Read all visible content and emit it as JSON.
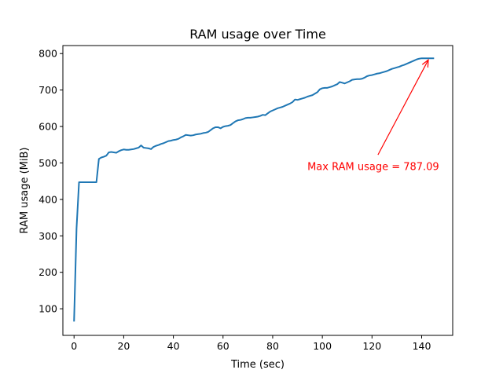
{
  "chart_data": {
    "type": "line",
    "title": "RAM usage over Time",
    "xlabel": "Time (sec)",
    "ylabel": "RAM usage (MiB)",
    "xlim": [
      -4.5,
      152.5
    ],
    "ylim": [
      27,
      822
    ],
    "xticks": [
      0,
      20,
      40,
      60,
      80,
      100,
      120,
      140
    ],
    "yticks": [
      100,
      200,
      300,
      400,
      500,
      600,
      700,
      800
    ],
    "grid": false,
    "legend": "none",
    "series": [
      {
        "color": "#1f77b4",
        "x": [
          0,
          1,
          2,
          3,
          4,
          5,
          6,
          7,
          8,
          9,
          10,
          11,
          12,
          13,
          14,
          15,
          16,
          17,
          18,
          19,
          20,
          21,
          22,
          23,
          24,
          25,
          26,
          27,
          28,
          29,
          30,
          31,
          32,
          33,
          34,
          35,
          36,
          37,
          38,
          39,
          40,
          41,
          42,
          43,
          44,
          45,
          46,
          47,
          48,
          49,
          50,
          51,
          52,
          53,
          54,
          55,
          56,
          57,
          58,
          59,
          60,
          61,
          62,
          63,
          64,
          65,
          66,
          67,
          68,
          69,
          70,
          71,
          72,
          73,
          74,
          75,
          76,
          77,
          78,
          79,
          80,
          81,
          82,
          83,
          84,
          85,
          86,
          87,
          88,
          89,
          90,
          91,
          92,
          93,
          94,
          95,
          96,
          97,
          98,
          99,
          100,
          101,
          102,
          103,
          104,
          105,
          106,
          107,
          108,
          109,
          110,
          111,
          112,
          113,
          114,
          115,
          116,
          117,
          118,
          119,
          120,
          121,
          122,
          123,
          124,
          125,
          126,
          127,
          128,
          129,
          130,
          131,
          132,
          133,
          134,
          135,
          136,
          137,
          138,
          139,
          140,
          141,
          142,
          143,
          144,
          145
        ],
        "y": [
          65,
          320,
          447,
          447,
          447,
          447,
          447,
          447,
          447,
          447,
          511,
          515,
          517,
          520,
          529,
          530,
          529,
          528,
          532,
          535,
          537,
          536,
          536,
          537,
          538,
          540,
          542,
          548,
          542,
          541,
          540,
          538,
          544,
          547,
          549,
          552,
          554,
          557,
          560,
          561,
          563,
          564,
          566,
          570,
          573,
          577,
          576,
          575,
          576,
          578,
          579,
          580,
          582,
          583,
          585,
          590,
          595,
          598,
          598,
          595,
          599,
          601,
          602,
          604,
          609,
          614,
          617,
          618,
          620,
          623,
          624,
          624,
          625,
          626,
          627,
          629,
          632,
          631,
          636,
          641,
          644,
          647,
          650,
          652,
          654,
          657,
          660,
          663,
          667,
          674,
          673,
          675,
          677,
          679,
          682,
          684,
          686,
          690,
          694,
          702,
          705,
          706,
          706,
          708,
          710,
          713,
          716,
          722,
          720,
          718,
          721,
          724,
          728,
          729,
          730,
          730,
          731,
          734,
          738,
          740,
          741,
          743,
          745,
          746,
          748,
          750,
          752,
          755,
          758,
          760,
          762,
          764,
          767,
          769,
          772,
          775,
          778,
          781,
          784,
          786,
          787.09,
          787,
          787,
          787,
          787,
          787
        ]
      }
    ],
    "annotations": [
      {
        "text": "Max RAM usage = 787.09",
        "color": "#ff0000",
        "point": [
          143,
          787.09
        ],
        "text_pos": [
          120.5,
          490
        ]
      }
    ]
  }
}
